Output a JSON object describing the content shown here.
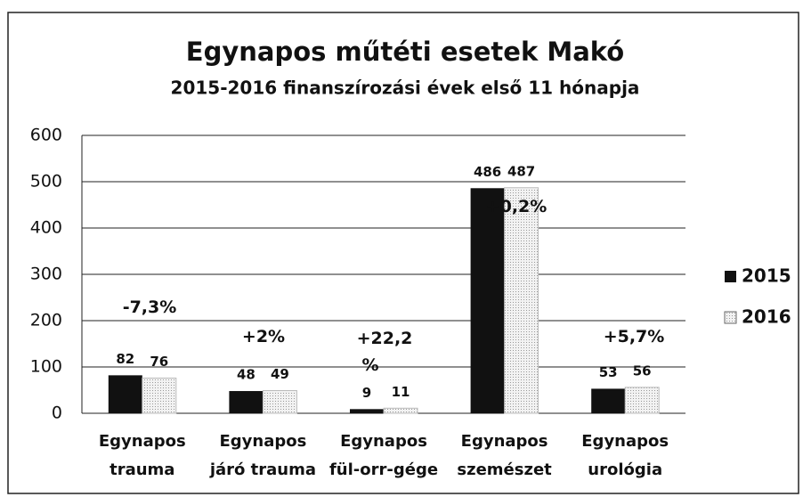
{
  "chart_data": {
    "type": "bar",
    "title": "Egynapos műtéti esetek Makó",
    "subtitle": "2015-2016 finanszírozási évek első 11 hónapja",
    "categories": [
      "Egynapos trauma",
      "Egynapos járó trauma",
      "Egynapos fül-orr-gége",
      "Egynapos szemészet",
      "Egynapos urológia"
    ],
    "series": [
      {
        "name": "2015",
        "color": "#111111",
        "values": [
          82,
          48,
          9,
          486,
          53
        ]
      },
      {
        "name": "2016",
        "color": "#dcdcdc",
        "values": [
          76,
          49,
          11,
          487,
          56
        ]
      }
    ],
    "annotations": [
      "-7,3%",
      "+2%",
      "+22,2 %",
      "+0,2%",
      "+5,7%"
    ],
    "ylim": [
      0,
      600
    ],
    "yticks": [
      0,
      100,
      200,
      300,
      400,
      500,
      600
    ],
    "grid": true,
    "legend": "right"
  }
}
